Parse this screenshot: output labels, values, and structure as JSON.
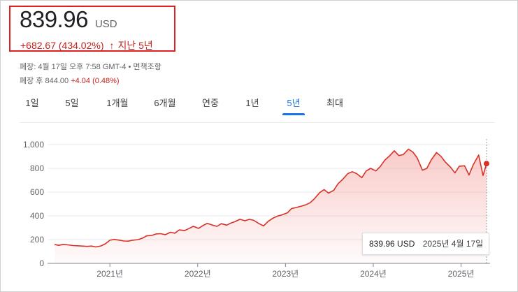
{
  "quote": {
    "price": "839.96",
    "currency": "USD",
    "change": "+682.67 (434.02%)",
    "change_arrow": "↑",
    "period": "지난 5년",
    "meta_line": "폐장: 4월 17일 오후 7:58 GMT-4 • 면책조항",
    "after_hours_label": "폐장 후 844.00",
    "after_hours_change": "+4.04 (0.48%)",
    "accent_color": "#d93025",
    "tab_accent_color": "#1a73e8"
  },
  "tabs": [
    {
      "label": "1일",
      "active": false
    },
    {
      "label": "5일",
      "active": false
    },
    {
      "label": "1개월",
      "active": false
    },
    {
      "label": "6개월",
      "active": false
    },
    {
      "label": "연중",
      "active": false
    },
    {
      "label": "1년",
      "active": false
    },
    {
      "label": "5년",
      "active": true
    },
    {
      "label": "최대",
      "active": false
    }
  ],
  "tooltip": {
    "price": "839.96 USD",
    "date": "2025년 4월 17일"
  },
  "chart_data": {
    "type": "area",
    "y_ticks": [
      "0",
      "200",
      "400",
      "600",
      "800",
      "1,000"
    ],
    "ylim": [
      0,
      1000
    ],
    "x_ticks": [
      {
        "label": "2021년",
        "x": 2021.0
      },
      {
        "label": "2022년",
        "x": 2022.0
      },
      {
        "label": "2023년",
        "x": 2023.0
      },
      {
        "label": "2024년",
        "x": 2024.0
      },
      {
        "label": "2025년",
        "x": 2025.0
      }
    ],
    "xlim": [
      2020.29,
      2025.33
    ],
    "grid": true,
    "series": [
      {
        "x": [
          2020.37,
          2020.42,
          2020.47,
          2020.52,
          2020.58,
          2020.63,
          2020.68,
          2020.74,
          2020.79,
          2020.84,
          2020.9,
          2020.95,
          2021.0,
          2021.05,
          2021.1,
          2021.16,
          2021.21,
          2021.26,
          2021.32,
          2021.37,
          2021.42,
          2021.48,
          2021.53,
          2021.58,
          2021.63,
          2021.69,
          2021.74,
          2021.79,
          2021.85,
          2021.9,
          2021.95,
          2022.01,
          2022.06,
          2022.11,
          2022.17,
          2022.22,
          2022.27,
          2022.33,
          2022.38,
          2022.43,
          2022.48,
          2022.54,
          2022.59,
          2022.64,
          2022.7,
          2022.75,
          2022.8,
          2022.86,
          2022.91,
          2022.96,
          2023.02,
          2023.07,
          2023.12,
          2023.18,
          2023.23,
          2023.28,
          2023.33,
          2023.39,
          2023.44,
          2023.49,
          2023.55,
          2023.6,
          2023.65,
          2023.71,
          2023.76,
          2023.81,
          2023.87,
          2023.92,
          2023.97,
          2024.03,
          2024.08,
          2024.13,
          2024.19,
          2024.24,
          2024.29,
          2024.34,
          2024.4,
          2024.45,
          2024.5,
          2024.56,
          2024.61,
          2024.66,
          2024.72,
          2024.77,
          2024.82,
          2024.88,
          2024.93,
          2024.98,
          2025.04,
          2025.09,
          2025.14,
          2025.2,
          2025.25,
          2025.29
        ],
        "values": [
          158,
          152,
          160,
          156,
          150,
          148,
          146,
          143,
          146,
          138,
          147,
          165,
          195,
          202,
          196,
          188,
          187,
          195,
          200,
          212,
          232,
          236,
          248,
          250,
          241,
          262,
          254,
          282,
          276,
          293,
          312,
          295,
          318,
          337,
          322,
          312,
          334,
          322,
          340,
          353,
          371,
          359,
          371,
          362,
          334,
          315,
          352,
          382,
          398,
          408,
          425,
          462,
          470,
          482,
          493,
          510,
          544,
          596,
          621,
          592,
          615,
          672,
          706,
          756,
          772,
          756,
          722,
          778,
          800,
          778,
          816,
          868,
          908,
          948,
          908,
          915,
          962,
          938,
          888,
          784,
          800,
          871,
          933,
          902,
          854,
          810,
          762,
          818,
          822,
          744,
          832,
          912,
          740,
          840
        ]
      }
    ]
  }
}
